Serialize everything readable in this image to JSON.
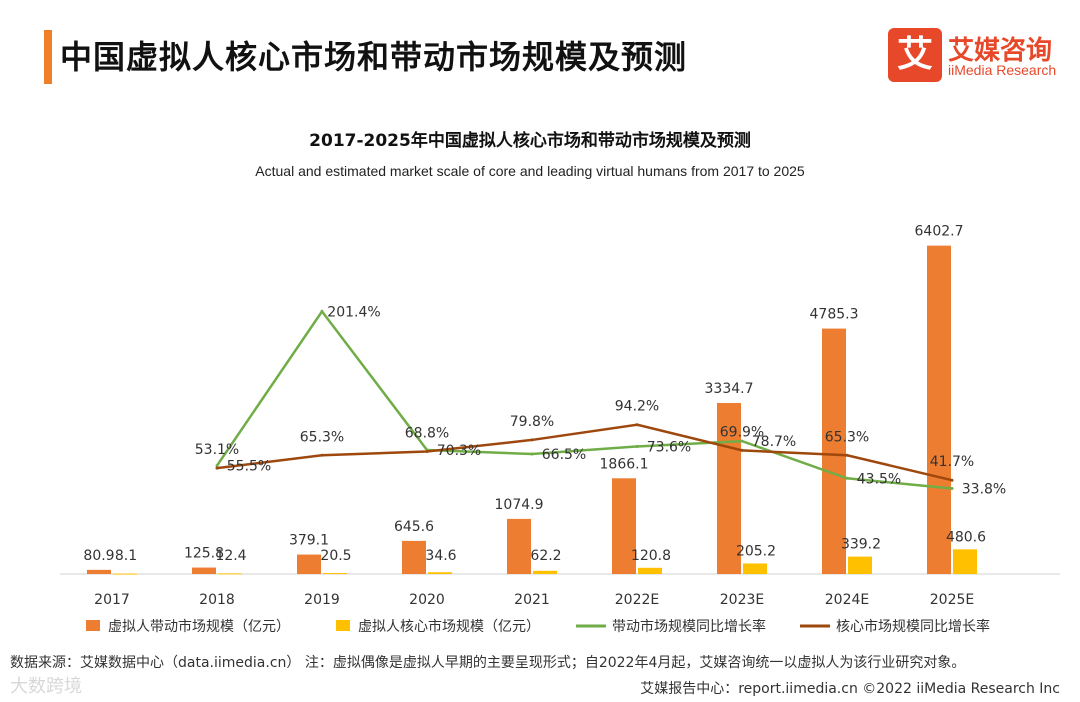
{
  "page": {
    "title": "中国虚拟人核心市场和带动市场规模及预测",
    "logo_mark": "艾",
    "logo_cn": "艾媒咨询",
    "logo_en": "iiMedia Research",
    "footer_note": "数据来源：艾媒数据中心（data.iimedia.cn） 注：虚拟偶像是虚拟人早期的主要呈现形式；自2022年4月起，艾媒咨询统一以虚拟人为该行业研究对象。",
    "footer_source": "艾媒报告中心：report.iimedia.cn ©2022 iiMedia Research Inc",
    "watermark": "大数跨境"
  },
  "colors": {
    "accent": "#f07f2a",
    "bar_leading": "#ed7d31",
    "bar_core": "#ffc000",
    "line_leading": "#70ad47",
    "line_core": "#9e480e"
  },
  "chart_data": {
    "type": "bar",
    "title": "2017-2025年中国虚拟人核心市场和带动市场规模及预测",
    "subtitle": "Actual and estimated market scale of core and leading virtual humans from 2017 to 2025",
    "categories": [
      "2017",
      "2018",
      "2019",
      "2020",
      "2021",
      "2022E",
      "2023E",
      "2024E",
      "2025E"
    ],
    "ylim": [
      0,
      7000
    ],
    "rate_ylim": [
      -100,
      250
    ],
    "series": [
      {
        "name": "虚拟人带动市场规模（亿元）",
        "kind": "bar",
        "values": [
          80.9,
          125.8,
          379.1,
          645.6,
          1074.9,
          1866.1,
          3334.7,
          4785.3,
          6402.7
        ],
        "labels": [
          "80.9",
          "125.8",
          "379.1",
          "645.6",
          "1074.9",
          "1866.1",
          "3334.7",
          "4785.3",
          "6402.7"
        ]
      },
      {
        "name": "虚拟人核心市场规模（亿元）",
        "kind": "bar",
        "values": [
          8.1,
          12.4,
          20.5,
          34.6,
          62.2,
          120.8,
          205.2,
          339.2,
          480.6
        ],
        "labels": [
          "8.1",
          "12.4",
          "20.5",
          "34.6",
          "62.2",
          "120.8",
          "205.2",
          "339.2",
          "480.6"
        ]
      },
      {
        "name": "带动市场规模同比增长率",
        "kind": "line",
        "values": [
          null,
          55.5,
          201.4,
          70.3,
          66.5,
          73.6,
          78.7,
          43.5,
          33.8
        ],
        "labels": [
          "",
          "55.5%",
          "201.4%",
          "70.3%",
          "66.5%",
          "73.6%",
          "78.7%",
          "43.5%",
          "33.8%"
        ]
      },
      {
        "name": "核心市场规模同比增长率",
        "kind": "line",
        "values": [
          null,
          53.1,
          65.3,
          68.8,
          79.8,
          94.2,
          69.9,
          65.3,
          41.7
        ],
        "labels": [
          "",
          "53.1%",
          "65.3%",
          "68.8%",
          "79.8%",
          "94.2%",
          "69.9%",
          "65.3%",
          "41.7%"
        ]
      }
    ]
  }
}
